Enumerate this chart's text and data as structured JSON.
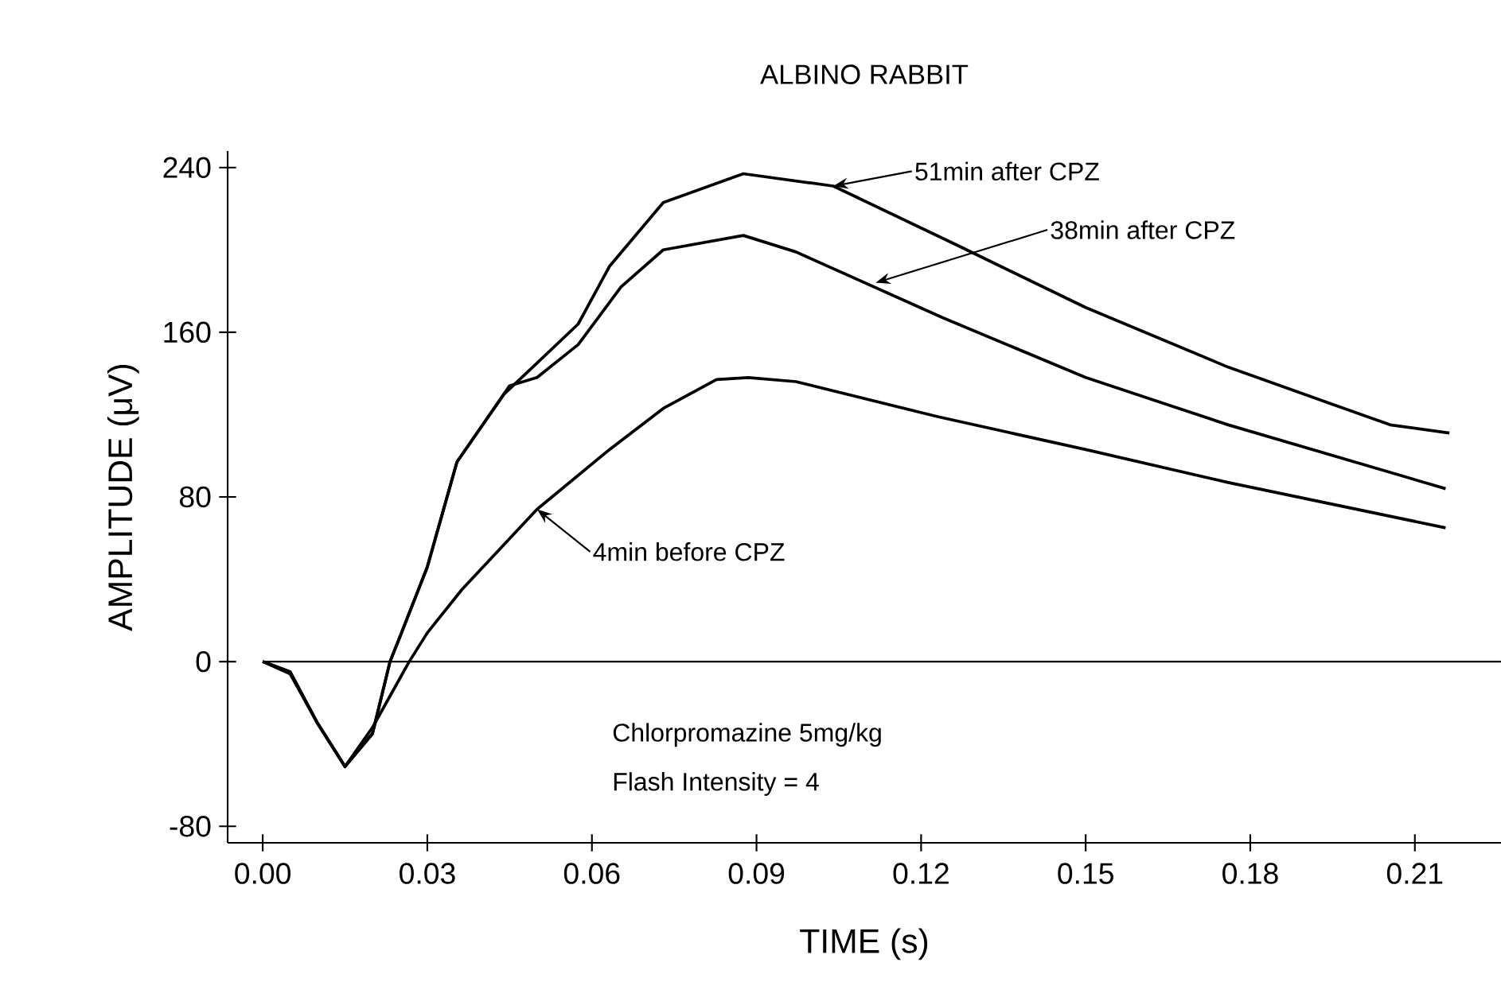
{
  "chart_data": {
    "type": "line",
    "title": "ALBINO RABBIT",
    "xlabel": "TIME (s)",
    "ylabel": "AMPLITUDE (μV)",
    "xlim": [
      -0.0064,
      0.2257
    ],
    "ylim": [
      -88,
      248
    ],
    "xticks": [
      {
        "value": 0,
        "label": "0.00"
      },
      {
        "value": 0.03,
        "label": "0.03"
      },
      {
        "value": 0.06,
        "label": "0.06"
      },
      {
        "value": 0.09,
        "label": "0.09"
      },
      {
        "value": 0.12,
        "label": "0.12"
      },
      {
        "value": 0.15,
        "label": "0.15"
      },
      {
        "value": 0.18,
        "label": "0.18"
      },
      {
        "value": 0.21,
        "label": "0.21"
      }
    ],
    "yticks": [
      -80,
      0,
      80,
      160,
      240
    ],
    "grid": false,
    "marker": "none",
    "line_style": "solid",
    "series": [
      {
        "color": "#000000",
        "x": [
          0,
          0.005,
          0.01,
          0.015,
          0.02,
          0.0232,
          0.025,
          0.03,
          0.0354,
          0.044,
          0.05,
          0.0575,
          0.0632,
          0.073,
          0.0876,
          0.104,
          0.126,
          0.15,
          0.176,
          0.2055,
          0.2163
        ],
        "values": [
          0,
          -5,
          -30,
          -51,
          -35,
          0,
          12,
          46,
          97,
          130,
          145,
          164,
          192,
          223,
          237,
          231,
          203,
          172,
          143,
          115,
          111
        ]
      },
      {
        "color": "#000000",
        "x": [
          0,
          0.005,
          0.01,
          0.015,
          0.02,
          0.0232,
          0.025,
          0.03,
          0.0354,
          0.045,
          0.05,
          0.0575,
          0.0653,
          0.073,
          0.0876,
          0.0972,
          0.124,
          0.15,
          0.176,
          0.2156
        ],
        "values": [
          0,
          -5,
          -30,
          -51,
          -35,
          0,
          12,
          46,
          97,
          134,
          138,
          154,
          182,
          200,
          207,
          199,
          167,
          138,
          115,
          84
        ]
      },
      {
        "color": "#000000",
        "x": [
          0,
          0.005,
          0.01,
          0.015,
          0.02,
          0.0267,
          0.03,
          0.0363,
          0.05,
          0.0632,
          0.073,
          0.0827,
          0.0885,
          0.0972,
          0.123,
          0.15,
          0.176,
          0.2156
        ],
        "values": [
          0,
          -6,
          -30,
          -51,
          -32,
          0,
          14,
          35,
          74,
          103,
          123,
          137,
          138,
          136,
          119,
          103,
          87,
          65
        ]
      }
    ],
    "ref_lines": [
      {
        "axis": "y",
        "value": 0,
        "color": "#000000"
      }
    ],
    "annotations": [
      {
        "text": "51min after CPZ",
        "x": 0.104,
        "y": 231
      },
      {
        "text": "38min after CPZ",
        "x": 0.1117,
        "y": 184
      },
      {
        "text": "4min before CPZ",
        "x": 0.05,
        "y": 74
      },
      "Chlorpromazine  5mg/kg",
      "Flash Intensity = 4"
    ]
  }
}
